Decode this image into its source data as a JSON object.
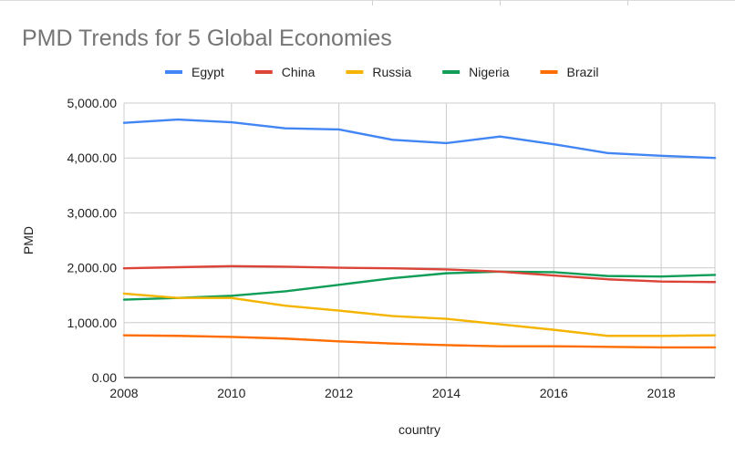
{
  "chart_data": {
    "type": "line",
    "title": "PMD Trends for 5 Global Economies",
    "xlabel": "country",
    "ylabel": "PMD",
    "x": [
      2008,
      2009,
      2010,
      2011,
      2012,
      2013,
      2014,
      2015,
      2016,
      2017,
      2018,
      2019
    ],
    "xlim": [
      2008,
      2019
    ],
    "ylim": [
      0,
      5000
    ],
    "x_ticks": [
      "2008",
      "2010",
      "2012",
      "2014",
      "2016",
      "2018"
    ],
    "x_tick_values": [
      2008,
      2010,
      2012,
      2014,
      2016,
      2018
    ],
    "y_ticks": [
      "0.00",
      "1,000.00",
      "2,000.00",
      "3,000.00",
      "4,000.00",
      "5,000.00"
    ],
    "y_tick_values": [
      0,
      1000,
      2000,
      3000,
      4000,
      5000
    ],
    "grid": true,
    "legend_position": "top",
    "series": [
      {
        "name": "Egypt",
        "color": "#4285F4",
        "values": [
          4640,
          4700,
          4650,
          4540,
          4520,
          4330,
          4270,
          4390,
          4250,
          4090,
          4040,
          4000
        ]
      },
      {
        "name": "China",
        "color": "#DB4437",
        "values": [
          1990,
          2010,
          2030,
          2020,
          2000,
          1990,
          1970,
          1930,
          1860,
          1790,
          1750,
          1740
        ]
      },
      {
        "name": "Russia",
        "color": "#F4B400",
        "values": [
          1530,
          1450,
          1450,
          1310,
          1220,
          1120,
          1070,
          970,
          870,
          760,
          760,
          770
        ]
      },
      {
        "name": "Nigeria",
        "color": "#0F9D58",
        "values": [
          1420,
          1450,
          1490,
          1570,
          1690,
          1810,
          1900,
          1930,
          1920,
          1850,
          1840,
          1870
        ]
      },
      {
        "name": "Brazil",
        "color": "#FF6D01",
        "values": [
          770,
          760,
          740,
          710,
          660,
          620,
          590,
          570,
          570,
          560,
          550,
          550
        ]
      }
    ]
  }
}
